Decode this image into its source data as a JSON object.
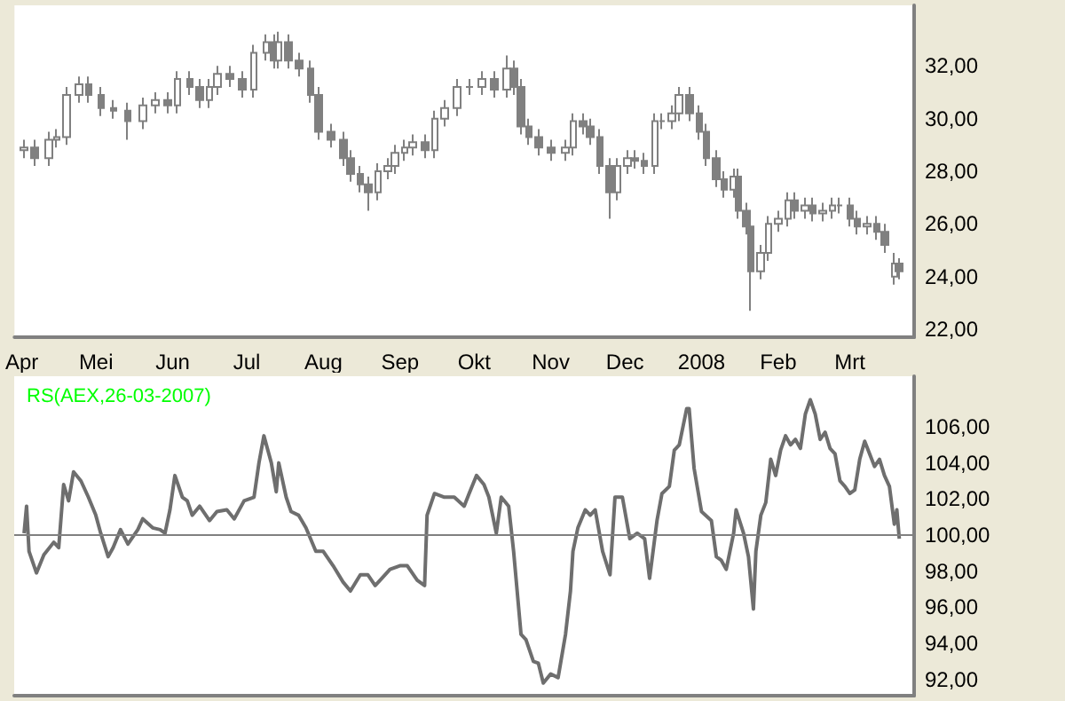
{
  "chart_data": [
    {
      "type": "candlestick",
      "color": "#808080",
      "xlim": [
        "2007-03-29",
        "2008-03-27"
      ],
      "ylim": [
        21.7,
        34.3
      ],
      "xticks": [
        {
          "value": "2007-04-01",
          "label": "Apr"
        },
        {
          "value": "2007-05-01",
          "label": "Mei"
        },
        {
          "value": "2007-06-01",
          "label": "Jun"
        },
        {
          "value": "2007-07-01",
          "label": "Jul"
        },
        {
          "value": "2007-08-01",
          "label": "Aug"
        },
        {
          "value": "2007-09-01",
          "label": "Sep"
        },
        {
          "value": "2007-10-01",
          "label": "Okt"
        },
        {
          "value": "2007-11-01",
          "label": "Nov"
        },
        {
          "value": "2007-12-01",
          "label": "Dec"
        },
        {
          "value": "2008-01-01",
          "label": "2008"
        },
        {
          "value": "2008-02-01",
          "label": "Feb"
        },
        {
          "value": "2008-03-01",
          "label": "Mrt"
        }
      ],
      "yticks": [
        {
          "value": 22,
          "label": "22,00"
        },
        {
          "value": 24,
          "label": "24,00"
        },
        {
          "value": 26,
          "label": "26,00"
        },
        {
          "value": 28,
          "label": "28,00"
        },
        {
          "value": 30,
          "label": "30,00"
        },
        {
          "value": 32,
          "label": "32,00"
        }
      ],
      "x": [
        "2007-04-02",
        "2007-04-06",
        "2007-04-12",
        "2007-04-15",
        "2007-04-19",
        "2007-04-24",
        "2007-04-28",
        "2007-05-03",
        "2007-05-08",
        "2007-05-14",
        "2007-05-20",
        "2007-05-25",
        "2007-05-30",
        "2007-06-03",
        "2007-06-08",
        "2007-06-12",
        "2007-06-16",
        "2007-06-19",
        "2007-06-24",
        "2007-06-29",
        "2007-07-04",
        "2007-07-09",
        "2007-07-12",
        "2007-07-14",
        "2007-07-18",
        "2007-07-22",
        "2007-07-27",
        "2007-07-30",
        "2007-08-04",
        "2007-08-09",
        "2007-08-12",
        "2007-08-16",
        "2007-08-19",
        "2007-08-23",
        "2007-08-27",
        "2007-08-30",
        "2007-09-03",
        "2007-09-06",
        "2007-09-11",
        "2007-09-15",
        "2007-09-19",
        "2007-09-24",
        "2007-09-29",
        "2007-10-04",
        "2007-10-09",
        "2007-10-14",
        "2007-10-17",
        "2007-10-20",
        "2007-10-23",
        "2007-10-27",
        "2007-11-01",
        "2007-11-07",
        "2007-11-10",
        "2007-11-14",
        "2007-11-17",
        "2007-11-21",
        "2007-11-25",
        "2007-11-28",
        "2007-12-02",
        "2007-12-05",
        "2007-12-09",
        "2007-12-13",
        "2007-12-16",
        "2007-12-20",
        "2007-12-23",
        "2007-12-27",
        "2007-12-31",
        "2008-01-03",
        "2008-01-07",
        "2008-01-10",
        "2008-01-14",
        "2008-01-16",
        "2008-01-19",
        "2008-01-21",
        "2008-01-25",
        "2008-01-28",
        "2008-02-01",
        "2008-02-05",
        "2008-02-08",
        "2008-02-12",
        "2008-02-15",
        "2008-02-19",
        "2008-02-23",
        "2008-02-26",
        "2008-03-01",
        "2008-03-04",
        "2008-03-08",
        "2008-03-12",
        "2008-03-15",
        "2008-03-19",
        "2008-03-21"
      ],
      "ohlc": [
        [
          28.8,
          29.2,
          28.5,
          28.9
        ],
        [
          28.9,
          29.2,
          28.2,
          28.5
        ],
        [
          28.5,
          29.5,
          28.2,
          29.2
        ],
        [
          29.2,
          29.6,
          28.9,
          29.3
        ],
        [
          29.3,
          31.2,
          29.0,
          30.9
        ],
        [
          30.9,
          31.6,
          30.6,
          31.3
        ],
        [
          31.3,
          31.6,
          30.6,
          30.9
        ],
        [
          30.9,
          31.2,
          30.1,
          30.4
        ],
        [
          30.4,
          30.7,
          30.0,
          30.3
        ],
        [
          30.3,
          30.6,
          29.2,
          29.9
        ],
        [
          29.9,
          30.8,
          29.6,
          30.5
        ],
        [
          30.5,
          31.0,
          30.2,
          30.7
        ],
        [
          30.7,
          31.0,
          30.2,
          30.5
        ],
        [
          30.5,
          31.8,
          30.2,
          31.5
        ],
        [
          31.5,
          31.8,
          30.9,
          31.2
        ],
        [
          31.2,
          31.5,
          30.4,
          30.7
        ],
        [
          30.7,
          31.5,
          30.4,
          31.2
        ],
        [
          31.2,
          32.0,
          30.9,
          31.7
        ],
        [
          31.7,
          32.0,
          31.2,
          31.5
        ],
        [
          31.5,
          31.8,
          30.8,
          31.1
        ],
        [
          31.1,
          32.8,
          30.8,
          32.5
        ],
        [
          32.5,
          33.2,
          32.2,
          32.9
        ],
        [
          32.9,
          33.2,
          31.9,
          32.2
        ],
        [
          32.2,
          33.3,
          31.9,
          32.9
        ],
        [
          32.9,
          33.2,
          31.9,
          32.2
        ],
        [
          32.2,
          32.5,
          31.6,
          31.9
        ],
        [
          31.9,
          32.2,
          30.6,
          30.9
        ],
        [
          30.9,
          31.2,
          29.2,
          29.5
        ],
        [
          29.5,
          29.8,
          28.9,
          29.2
        ],
        [
          29.2,
          29.5,
          28.2,
          28.5
        ],
        [
          28.5,
          28.8,
          27.6,
          27.9
        ],
        [
          27.9,
          28.2,
          27.2,
          27.5
        ],
        [
          27.5,
          27.8,
          26.5,
          27.2
        ],
        [
          27.2,
          28.3,
          26.9,
          28.0
        ],
        [
          28.0,
          28.5,
          27.7,
          28.2
        ],
        [
          28.2,
          29.0,
          27.9,
          28.7
        ],
        [
          28.7,
          29.2,
          28.4,
          28.9
        ],
        [
          28.9,
          29.4,
          28.6,
          29.1
        ],
        [
          29.1,
          29.4,
          28.5,
          28.8
        ],
        [
          28.8,
          30.3,
          28.5,
          30.0
        ],
        [
          30.0,
          30.7,
          29.7,
          30.4
        ],
        [
          30.4,
          31.5,
          30.1,
          31.2
        ],
        [
          31.2,
          31.5,
          30.9,
          31.2
        ],
        [
          31.2,
          31.8,
          30.9,
          31.5
        ],
        [
          31.5,
          31.8,
          30.8,
          31.1
        ],
        [
          31.1,
          32.4,
          30.8,
          31.9
        ],
        [
          31.9,
          32.2,
          30.9,
          31.2
        ],
        [
          31.2,
          31.5,
          29.4,
          29.7
        ],
        [
          29.7,
          30.0,
          29.0,
          29.3
        ],
        [
          29.3,
          29.6,
          28.6,
          28.9
        ],
        [
          28.9,
          29.2,
          28.4,
          28.7
        ],
        [
          28.7,
          29.2,
          28.4,
          28.9
        ],
        [
          28.9,
          30.2,
          28.6,
          29.9
        ],
        [
          29.9,
          30.2,
          29.4,
          29.7
        ],
        [
          29.7,
          30.0,
          29.0,
          29.3
        ],
        [
          29.3,
          29.6,
          27.9,
          28.2
        ],
        [
          28.2,
          28.5,
          26.2,
          27.2
        ],
        [
          27.2,
          28.5,
          26.9,
          28.2
        ],
        [
          28.2,
          28.8,
          27.9,
          28.5
        ],
        [
          28.5,
          28.8,
          28.1,
          28.4
        ],
        [
          28.4,
          28.7,
          27.9,
          28.2
        ],
        [
          28.2,
          30.2,
          27.9,
          29.9
        ],
        [
          29.9,
          30.2,
          29.6,
          29.9
        ],
        [
          29.9,
          30.5,
          29.6,
          30.2
        ],
        [
          30.2,
          31.2,
          29.9,
          30.9
        ],
        [
          30.9,
          31.2,
          29.9,
          30.2
        ],
        [
          30.2,
          30.5,
          29.2,
          29.5
        ],
        [
          29.5,
          29.8,
          28.2,
          28.5
        ],
        [
          28.5,
          28.8,
          27.4,
          27.7
        ],
        [
          27.7,
          28.0,
          27.0,
          27.3
        ],
        [
          27.3,
          28.1,
          27.0,
          27.8
        ],
        [
          27.8,
          28.1,
          26.2,
          26.5
        ],
        [
          26.5,
          26.8,
          25.6,
          25.9
        ],
        [
          25.9,
          26.2,
          22.7,
          24.2
        ],
        [
          24.2,
          25.2,
          23.9,
          24.9
        ],
        [
          24.9,
          26.3,
          24.6,
          26.0
        ],
        [
          26.0,
          26.5,
          25.7,
          26.2
        ],
        [
          26.2,
          27.2,
          25.9,
          26.9
        ],
        [
          26.9,
          27.2,
          26.2,
          26.5
        ],
        [
          26.5,
          27.0,
          26.2,
          26.7
        ],
        [
          26.7,
          27.0,
          26.1,
          26.4
        ],
        [
          26.4,
          26.8,
          26.1,
          26.5
        ],
        [
          26.5,
          27.0,
          26.2,
          26.7
        ],
        [
          26.7,
          27.0,
          26.4,
          26.7
        ],
        [
          26.7,
          27.0,
          25.9,
          26.2
        ],
        [
          26.2,
          26.5,
          25.6,
          25.9
        ],
        [
          25.9,
          26.3,
          25.6,
          26.0
        ],
        [
          26.0,
          26.3,
          25.4,
          25.7
        ],
        [
          25.7,
          26.0,
          24.9,
          25.2
        ],
        [
          24.0,
          24.9,
          23.7,
          24.5
        ],
        [
          24.5,
          24.7,
          23.9,
          24.2
        ]
      ]
    },
    {
      "type": "line",
      "title": "RS(AEX,26-03-2007)",
      "xlim": [
        "2007-03-29",
        "2008-03-27"
      ],
      "ylim": [
        91.1,
        108.8
      ],
      "tick_labels": "y",
      "marker": "none",
      "line_style": "solid",
      "yticks": [
        {
          "value": 92,
          "label": "92,00"
        },
        {
          "value": 94,
          "label": "94,00"
        },
        {
          "value": 96,
          "label": "96,00"
        },
        {
          "value": 98,
          "label": "98,00"
        },
        {
          "value": 100,
          "label": "100,00"
        },
        {
          "value": 102,
          "label": "102,00"
        },
        {
          "value": 104,
          "label": "104,00"
        },
        {
          "value": 106,
          "label": "106,00"
        }
      ],
      "ref_lines": [
        {
          "axis": "y",
          "value": 100,
          "color": "#808080"
        }
      ],
      "series": [
        {
          "color": "#6e6e6e",
          "x": [
            "2007-04-02",
            "2007-04-03",
            "2007-04-04",
            "2007-04-07",
            "2007-04-10",
            "2007-04-14",
            "2007-04-16",
            "2007-04-18",
            "2007-04-20",
            "2007-04-22",
            "2007-04-25",
            "2007-04-28",
            "2007-05-01",
            "2007-05-03",
            "2007-05-06",
            "2007-05-08",
            "2007-05-11",
            "2007-05-14",
            "2007-05-18",
            "2007-05-20",
            "2007-05-24",
            "2007-05-27",
            "2007-05-29",
            "2007-05-31",
            "2007-06-02",
            "2007-06-05",
            "2007-06-07",
            "2007-06-09",
            "2007-06-12",
            "2007-06-16",
            "2007-06-19",
            "2007-06-23",
            "2007-06-26",
            "2007-06-30",
            "2007-07-04",
            "2007-07-06",
            "2007-07-08",
            "2007-07-11",
            "2007-07-13",
            "2007-07-14",
            "2007-07-17",
            "2007-07-19",
            "2007-07-22",
            "2007-07-25",
            "2007-07-29",
            "2007-08-01",
            "2007-08-05",
            "2007-08-09",
            "2007-08-12",
            "2007-08-16",
            "2007-08-19",
            "2007-08-22",
            "2007-08-24",
            "2007-08-28",
            "2007-09-01",
            "2007-09-04",
            "2007-09-08",
            "2007-09-11",
            "2007-09-12",
            "2007-09-15",
            "2007-09-19",
            "2007-09-23",
            "2007-09-27",
            "2007-09-29",
            "2007-10-02",
            "2007-10-05",
            "2007-10-07",
            "2007-10-10",
            "2007-10-12",
            "2007-10-15",
            "2007-10-17",
            "2007-10-20",
            "2007-10-22",
            "2007-10-25",
            "2007-10-27",
            "2007-10-29",
            "2007-11-01",
            "2007-11-04",
            "2007-11-07",
            "2007-11-09",
            "2007-11-10",
            "2007-11-12",
            "2007-11-15",
            "2007-11-17",
            "2007-11-19",
            "2007-11-22",
            "2007-11-25",
            "2007-11-27",
            "2007-11-30",
            "2007-12-03",
            "2007-12-06",
            "2007-12-09",
            "2007-12-11",
            "2007-12-14",
            "2007-12-16",
            "2007-12-19",
            "2007-12-21",
            "2007-12-23",
            "2007-12-26",
            "2007-12-27",
            "2007-12-29",
            "2008-01-01",
            "2008-01-05",
            "2008-01-07",
            "2008-01-09",
            "2008-01-11",
            "2008-01-14",
            "2008-01-15",
            "2008-01-18",
            "2008-01-20",
            "2008-01-22",
            "2008-01-23",
            "2008-01-25",
            "2008-01-27",
            "2008-01-29",
            "2008-01-31",
            "2008-02-02",
            "2008-02-04",
            "2008-02-06",
            "2008-02-08",
            "2008-02-10",
            "2008-02-12",
            "2008-02-14",
            "2008-02-16",
            "2008-02-18",
            "2008-02-20",
            "2008-02-22",
            "2008-02-24",
            "2008-02-26",
            "2008-02-28",
            "2008-03-01",
            "2008-03-03",
            "2008-03-05",
            "2008-03-07",
            "2008-03-09",
            "2008-03-11",
            "2008-03-13",
            "2008-03-15",
            "2008-03-17",
            "2008-03-19",
            "2008-03-20",
            "2008-03-21"
          ],
          "values": [
            100.1,
            101.6,
            99.1,
            97.9,
            98.9,
            99.6,
            99.3,
            102.8,
            101.9,
            103.5,
            103.0,
            102.1,
            101.1,
            100.1,
            98.8,
            99.3,
            100.3,
            99.5,
            100.3,
            100.9,
            100.4,
            100.3,
            100.1,
            101.4,
            103.3,
            102.1,
            101.9,
            101.1,
            101.6,
            100.8,
            101.3,
            101.4,
            100.9,
            101.9,
            102.1,
            104.0,
            105.5,
            104.0,
            102.4,
            104.0,
            102.1,
            101.3,
            101.1,
            100.4,
            99.1,
            99.1,
            98.3,
            97.4,
            96.9,
            97.8,
            97.8,
            97.2,
            97.5,
            98.1,
            98.3,
            98.3,
            97.5,
            97.2,
            101.1,
            102.3,
            102.1,
            102.1,
            101.6,
            102.3,
            103.3,
            102.8,
            102.1,
            100.1,
            102.1,
            101.6,
            99.1,
            94.5,
            94.2,
            93.0,
            92.9,
            91.8,
            92.3,
            92.1,
            94.5,
            96.9,
            99.1,
            100.4,
            101.4,
            101.1,
            101.4,
            99.1,
            97.8,
            102.1,
            102.1,
            99.8,
            100.1,
            99.8,
            97.6,
            100.8,
            102.3,
            102.7,
            104.7,
            105.0,
            107.0,
            107.0,
            103.7,
            101.3,
            100.8,
            98.8,
            98.6,
            98.1,
            100.1,
            101.4,
            100.1,
            98.8,
            95.9,
            99.1,
            101.1,
            101.8,
            104.2,
            103.3,
            104.7,
            105.5,
            105.0,
            105.3,
            104.8,
            106.7,
            107.5,
            106.7,
            105.3,
            105.7,
            104.8,
            104.5,
            103.0,
            102.7,
            102.3,
            102.5,
            104.2,
            105.2,
            104.5,
            103.8,
            104.2,
            103.3,
            102.7,
            100.6,
            101.4,
            99.8
          ]
        }
      ]
    }
  ]
}
